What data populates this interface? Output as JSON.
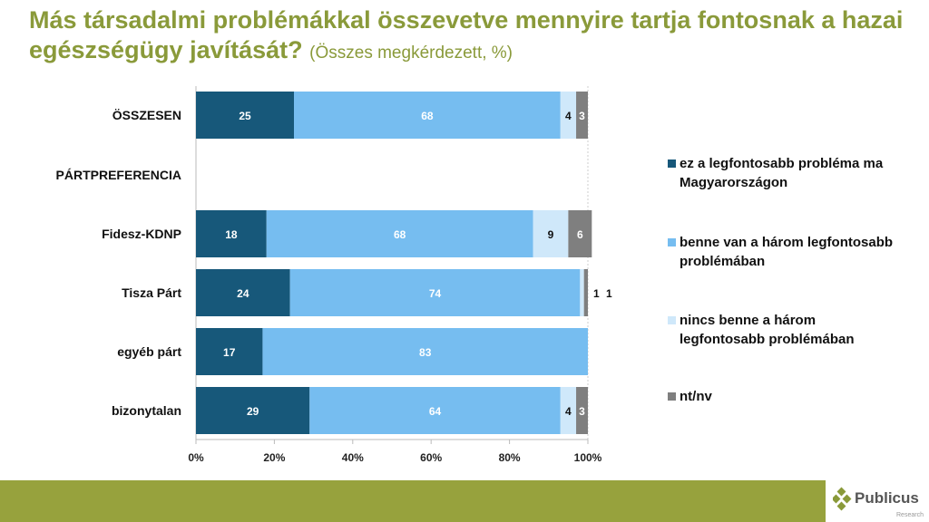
{
  "title": "Más társadalmi problémákkal összevetve mennyire tartja fontosnak a hazai egészségügy javítását?",
  "subtitle": "(Összes megkérdezett, %)",
  "chart_data": {
    "type": "bar",
    "orientation": "horizontal",
    "stacked": true,
    "categories": [
      "ÖSSZESEN",
      "PÁRTPREFERENCIA",
      "Fidesz-KDNP",
      "Tisza Párt",
      "egyéb párt",
      "bizonytalan"
    ],
    "series": [
      {
        "name": "ez a legfontosabb probléma ma Magyarországon",
        "color": "#17587a",
        "values": [
          25,
          null,
          18,
          24,
          17,
          29
        ]
      },
      {
        "name": "benne van a három legfontosabb problémában",
        "color": "#76bdf0",
        "values": [
          68,
          null,
          68,
          74,
          83,
          64
        ]
      },
      {
        "name": "nincs benne a három legfontosabb problémában",
        "color": "#cfe8fa",
        "values": [
          4,
          null,
          9,
          1,
          0,
          4
        ]
      },
      {
        "name": "nt/nv",
        "color": "#7f7f7f",
        "values": [
          3,
          null,
          6,
          1,
          0,
          3
        ]
      }
    ],
    "xticks": [
      "0%",
      "20%",
      "40%",
      "60%",
      "80%",
      "100%"
    ],
    "xlim": [
      0,
      100
    ],
    "legend": "right"
  },
  "logo": {
    "name": "Publicus",
    "tagline": "Research"
  }
}
